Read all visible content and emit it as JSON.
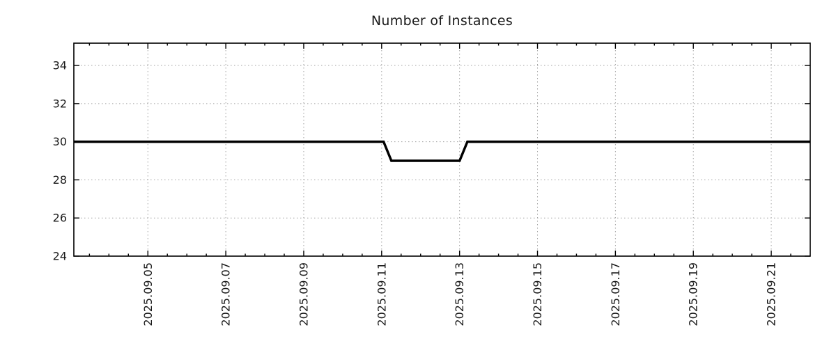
{
  "chart_data": {
    "type": "line",
    "title": "Number of Instances",
    "xlabel": "",
    "ylabel": "",
    "x_axis": {
      "unit": "day of September 2025",
      "xlim": [
        3.1,
        22.0
      ],
      "major_ticks": [
        {
          "value": 5,
          "label": "2025.09.05"
        },
        {
          "value": 7,
          "label": "2025.09.07"
        },
        {
          "value": 9,
          "label": "2025.09.09"
        },
        {
          "value": 11,
          "label": "2025.09.11"
        },
        {
          "value": 13,
          "label": "2025.09.13"
        },
        {
          "value": 15,
          "label": "2025.09.15"
        },
        {
          "value": 17,
          "label": "2025.09.17"
        },
        {
          "value": 19,
          "label": "2025.09.19"
        },
        {
          "value": 21,
          "label": "2025.09.21"
        }
      ],
      "minor_tick_interval": 0.5,
      "tick_label_rotation_deg": -90
    },
    "y_axis": {
      "ylim": [
        24,
        35.17
      ],
      "major_ticks": [
        24,
        26,
        28,
        30,
        32,
        34
      ]
    },
    "grid": {
      "style": "dotted",
      "color": "#a0a0a0",
      "at_major_ticks": true
    },
    "legend": "none",
    "series": [
      {
        "name": "instances",
        "color": "#000000",
        "line_width": 3.5,
        "points": [
          [
            3.1,
            30
          ],
          [
            11.05,
            30
          ],
          [
            11.25,
            29
          ],
          [
            13.0,
            29
          ],
          [
            13.2,
            30
          ],
          [
            22.0,
            30
          ]
        ]
      }
    ]
  },
  "colors": {
    "background": "#ffffff",
    "axis": "#000000",
    "tick_label": "#1a1a1a",
    "grid": "#a0a0a0",
    "line": "#000000"
  }
}
